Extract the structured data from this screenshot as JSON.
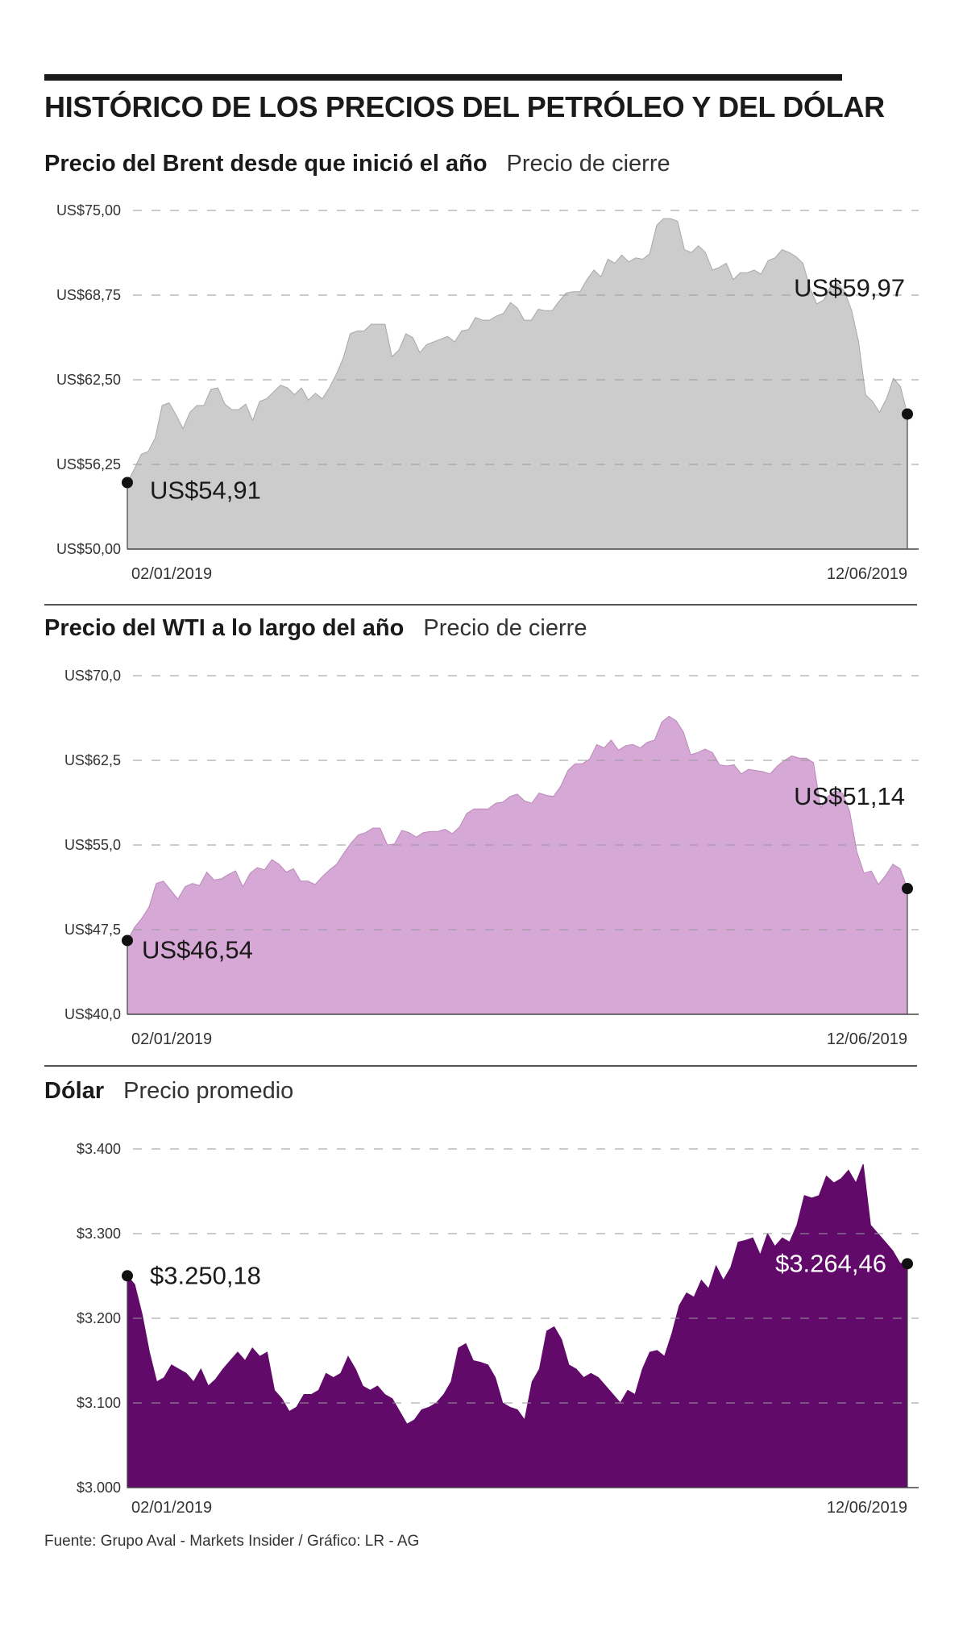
{
  "title": "HISTÓRICO DE LOS PRECIOS DEL PETRÓLEO Y DEL DÓLAR",
  "source": "Fuente: Grupo Aval - Markets Insider / Gráfico: LR - AG",
  "chart_data": [
    {
      "type": "area",
      "title": "Precio del Brent desde que inició el año",
      "subtitle": "Precio de cierre",
      "color": "#cccccc",
      "edge_color": "#a8a8a8",
      "ylim": [
        50,
        75
      ],
      "yticks": [
        50,
        56.25,
        62.5,
        68.75,
        75
      ],
      "ytick_labels": [
        "US$50,00",
        "US$56,25",
        "US$62,50",
        "US$68,75",
        "US$75,00"
      ],
      "x_start_label": "02/01/2019",
      "x_end_label": "12/06/2019",
      "start_label": "US$54,91",
      "end_label": "US$59,97",
      "grid": "dashed-horizontal",
      "values": [
        54.91,
        55.9,
        57.0,
        57.2,
        58.2,
        60.6,
        60.8,
        59.9,
        58.9,
        60.1,
        60.6,
        60.6,
        61.8,
        61.9,
        60.7,
        60.3,
        60.3,
        60.7,
        59.5,
        60.9,
        61.1,
        61.6,
        62.1,
        61.9,
        61.4,
        61.9,
        61.0,
        61.5,
        61.1,
        61.9,
        62.9,
        64.1,
        65.9,
        66.1,
        66.1,
        66.6,
        66.6,
        66.6,
        64.2,
        64.7,
        65.9,
        65.6,
        64.5,
        65.1,
        65.3,
        65.5,
        65.7,
        65.3,
        66.1,
        66.2,
        67.1,
        66.9,
        66.9,
        67.2,
        67.4,
        68.2,
        67.8,
        66.9,
        66.9,
        67.7,
        67.6,
        67.6,
        68.3,
        68.9,
        69.0,
        69.0,
        69.9,
        70.6,
        70.1,
        71.4,
        71.1,
        71.7,
        71.2,
        71.5,
        71.4,
        71.8,
        73.9,
        74.4,
        74.4,
        74.2,
        72.1,
        71.9,
        72.4,
        71.9,
        70.6,
        70.8,
        71.1,
        69.9,
        70.4,
        70.4,
        70.6,
        70.3,
        71.3,
        71.5,
        72.1,
        71.9,
        71.6,
        71.1,
        69.3,
        68.1,
        68.4,
        69.4,
        69.6,
        69.0,
        67.6,
        65.3,
        61.4,
        60.9,
        60.1,
        61.1,
        62.6,
        62.0,
        59.97
      ]
    },
    {
      "type": "area",
      "title": "Precio del WTI a lo largo del año",
      "subtitle": "Precio de cierre",
      "color": "#d5a8d5",
      "edge_color": "#b98ab9",
      "ylim": [
        40,
        70
      ],
      "yticks": [
        40,
        47.5,
        55,
        62.5,
        70
      ],
      "ytick_labels": [
        "US$40,0",
        "US$47,5",
        "US$55,0",
        "US$62,5",
        "US$70,0"
      ],
      "x_start_label": "02/01/2019",
      "x_end_label": "12/06/2019",
      "start_label": "US$46,54",
      "end_label": "US$51,14",
      "grid": "dashed-horizontal",
      "values": [
        46.54,
        47.7,
        48.5,
        49.5,
        51.6,
        51.8,
        51.0,
        50.2,
        51.3,
        51.6,
        51.4,
        52.6,
        51.9,
        52.0,
        52.4,
        52.7,
        51.3,
        52.5,
        53.0,
        52.8,
        53.7,
        53.3,
        52.6,
        52.9,
        51.8,
        51.8,
        51.5,
        52.2,
        52.8,
        53.3,
        54.3,
        55.2,
        55.9,
        56.1,
        56.5,
        56.5,
        55.0,
        55.1,
        56.3,
        56.1,
        55.7,
        56.1,
        56.2,
        56.2,
        56.4,
        56.0,
        56.6,
        57.8,
        58.2,
        58.2,
        58.2,
        58.7,
        58.8,
        59.3,
        59.5,
        58.9,
        58.7,
        59.6,
        59.4,
        59.3,
        60.2,
        61.6,
        62.2,
        62.2,
        62.6,
        63.9,
        63.6,
        64.3,
        63.4,
        63.8,
        63.9,
        63.6,
        64.1,
        64.3,
        65.9,
        66.4,
        66.0,
        65.0,
        63.0,
        63.2,
        63.5,
        63.2,
        62.1,
        62.0,
        62.1,
        61.3,
        61.7,
        61.6,
        61.5,
        61.3,
        62.0,
        62.5,
        62.9,
        62.7,
        62.7,
        62.3,
        58.3,
        59.3,
        59.8,
        59.6,
        58.0,
        54.4,
        52.5,
        52.7,
        51.5,
        52.3,
        53.3,
        52.9,
        51.14
      ]
    },
    {
      "type": "area",
      "title": "Dólar",
      "subtitle": "Precio promedio",
      "color": "#610a69",
      "edge_color": "#610a69",
      "ylim": [
        3000,
        3400
      ],
      "yticks": [
        3000,
        3100,
        3200,
        3300,
        3400
      ],
      "ytick_labels": [
        "$3.000",
        "$3.100",
        "$3.200",
        "$3.300",
        "$3.400"
      ],
      "x_start_label": "02/01/2019",
      "x_end_label": "12/06/2019",
      "start_label": "$3.250,18",
      "end_label": "$3.264,46",
      "grid": "dashed-horizontal",
      "values": [
        3250.18,
        3240,
        3205,
        3160,
        3125,
        3130,
        3145,
        3140,
        3135,
        3125,
        3140,
        3120,
        3128,
        3140,
        3150,
        3160,
        3150,
        3165,
        3155,
        3160,
        3115,
        3105,
        3090,
        3095,
        3110,
        3110,
        3115,
        3135,
        3130,
        3135,
        3155,
        3140,
        3120,
        3115,
        3120,
        3110,
        3105,
        3090,
        3075,
        3080,
        3092,
        3095,
        3100,
        3110,
        3125,
        3165,
        3170,
        3150,
        3148,
        3145,
        3130,
        3100,
        3095,
        3092,
        3080,
        3125,
        3140,
        3185,
        3190,
        3175,
        3145,
        3140,
        3130,
        3135,
        3130,
        3120,
        3110,
        3100,
        3115,
        3110,
        3140,
        3160,
        3162,
        3155,
        3182,
        3215,
        3230,
        3225,
        3245,
        3235,
        3262,
        3245,
        3260,
        3290,
        3292,
        3295,
        3275,
        3300,
        3285,
        3295,
        3290,
        3310,
        3345,
        3342,
        3345,
        3368,
        3360,
        3365,
        3375,
        3360,
        3382,
        3310,
        3300,
        3290,
        3280,
        3265,
        3264.46
      ]
    }
  ]
}
